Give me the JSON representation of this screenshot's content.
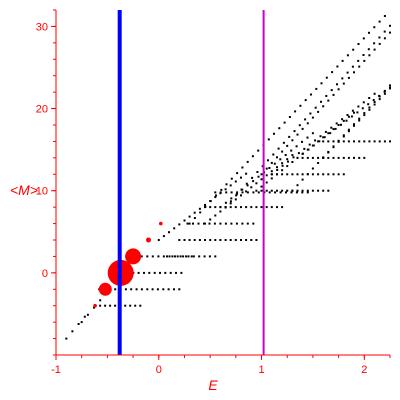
{
  "colors": {
    "axis": "#ff0000",
    "tick_text": "#ff0000",
    "points": "#000000",
    "bubbles": "#ff0000",
    "line_blue": "#0000ff",
    "line_magenta": "#cc00cc"
  },
  "chart_data": {
    "type": "scatter",
    "title": "",
    "xlabel": "E",
    "ylabel": "<M>",
    "xlim": [
      -1.0,
      2.25
    ],
    "ylim": [
      -10,
      32
    ],
    "grid": false,
    "x_ticks": [
      -1,
      0,
      1,
      2
    ],
    "y_ticks": [
      0,
      10,
      20,
      30
    ],
    "x_tick_labels": [
      "-1",
      "0",
      "1",
      "2"
    ],
    "y_tick_labels": [
      "0",
      "10",
      "20",
      "30"
    ],
    "vertical_lines": [
      {
        "x": -0.38,
        "color": "#0000ff",
        "style": "thick"
      },
      {
        "x": 1.02,
        "color": "#cc00cc",
        "style": "thin"
      }
    ],
    "bubbles": [
      {
        "x": -0.37,
        "y": 0.0,
        "size": 13
      },
      {
        "x": -0.25,
        "y": 2.0,
        "size": 8
      },
      {
        "x": -0.52,
        "y": -2.0,
        "size": 6.5
      },
      {
        "x": -0.1,
        "y": 4.0,
        "size": 2.5
      },
      {
        "x": 0.02,
        "y": 6.0,
        "size": 1.8
      },
      {
        "x": -0.62,
        "y": -4.0,
        "size": 1.8
      }
    ],
    "point_bands": [
      {
        "x_start": -0.9,
        "x_end": -0.72,
        "y_start": -8.0,
        "slope": 14.8,
        "n": 4
      },
      {
        "x_start": -0.75,
        "x_end": -0.57,
        "y_start": -6.0,
        "slope": 14.8,
        "n": 4
      },
      {
        "x_start": -0.62,
        "x_end": -0.18,
        "y_start": -4.0,
        "slope": 0.0,
        "n": 10
      },
      {
        "x_start": -0.58,
        "x_end": 0.2,
        "y_start": -2.0,
        "slope": 0.0,
        "n": 16
      },
      {
        "x_start": -0.3,
        "x_end": 0.22,
        "y_start": 0.0,
        "slope": 0.0,
        "n": 11
      },
      {
        "x_start": -0.22,
        "x_end": 0.32,
        "y_start": 2.0,
        "slope": 0.0,
        "n": 11
      },
      {
        "x_start": 0.08,
        "x_end": 0.55,
        "y_start": 2.0,
        "slope": 0.0,
        "n": 10
      },
      {
        "x_start": 0.2,
        "x_end": 0.95,
        "y_start": 4.0,
        "slope": 0.0,
        "n": 16
      },
      {
        "x_start": 0.28,
        "x_end": 0.92,
        "y_start": 6.0,
        "slope": 0.0,
        "n": 13
      },
      {
        "x_start": 0.45,
        "x_end": 1.2,
        "y_start": 8.0,
        "slope": 0.0,
        "n": 16
      },
      {
        "x_start": 0.55,
        "x_end": 1.45,
        "y_start": 9.8,
        "slope": 0.0,
        "n": 18
      },
      {
        "x_start": 1.0,
        "x_end": 1.65,
        "y_start": 10.0,
        "slope": 0.0,
        "n": 14
      },
      {
        "x_start": 1.1,
        "x_end": 1.8,
        "y_start": 12.0,
        "slope": 0.0,
        "n": 15
      },
      {
        "x_start": 1.4,
        "x_end": 2.0,
        "y_start": 14.0,
        "slope": 0.0,
        "n": 13
      },
      {
        "x_start": 1.6,
        "x_end": 2.25,
        "y_start": 16.0,
        "slope": 0.0,
        "n": 14
      },
      {
        "x_start": 0.0,
        "x_end": 0.85,
        "y_start": 4.0,
        "slope": 9.5,
        "n": 18
      },
      {
        "x_start": 0.45,
        "x_end": 1.3,
        "y_start": 6.0,
        "slope": 9.8,
        "n": 18
      },
      {
        "x_start": 0.6,
        "x_end": 1.5,
        "y_start": 8.0,
        "slope": 10.0,
        "n": 18
      },
      {
        "x_start": 0.95,
        "x_end": 1.9,
        "y_start": 10.0,
        "slope": 10.0,
        "n": 20
      },
      {
        "x_start": 1.1,
        "x_end": 2.1,
        "y_start": 12.0,
        "slope": 9.8,
        "n": 20
      },
      {
        "x_start": 1.35,
        "x_end": 2.25,
        "y_start": 14.0,
        "slope": 9.5,
        "n": 18
      },
      {
        "x_start": 0.3,
        "x_end": 2.2,
        "y_start": 6.0,
        "slope": 13.3,
        "n": 38
      },
      {
        "x_start": 0.65,
        "x_end": 2.25,
        "y_start": 8.0,
        "slope": 13.8,
        "n": 32
      },
      {
        "x_start": 1.0,
        "x_end": 2.25,
        "y_start": 12.0,
        "slope": 13.8,
        "n": 26
      },
      {
        "x_start": 1.3,
        "x_end": 2.25,
        "y_start": 10.0,
        "slope": 13.5,
        "n": 20
      },
      {
        "x_start": 1.6,
        "x_end": 2.25,
        "y_start": 14.0,
        "slope": 13.0,
        "n": 14
      }
    ]
  }
}
